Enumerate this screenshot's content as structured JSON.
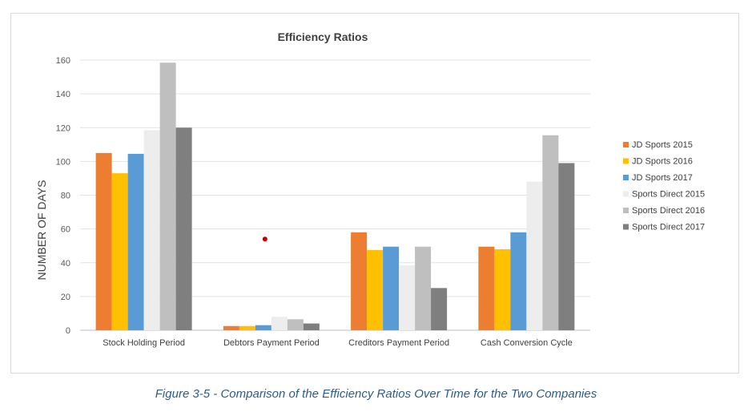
{
  "caption": "Figure 3-5 - Comparison of the Efficiency Ratios Over Time for the Two Companies",
  "chart_data": {
    "type": "bar",
    "title": "Efficiency Ratios",
    "xlabel": "",
    "ylabel": "NUMBER OF DAYS",
    "ylim": [
      0,
      160
    ],
    "yticks": [
      0,
      20,
      40,
      60,
      80,
      100,
      120,
      140,
      160
    ],
    "grid": true,
    "legend_position": "right",
    "categories": [
      "Stock Holding Period",
      "Debtors Payment Period",
      "Creditors Payment Period",
      "Cash Conversion Cycle"
    ],
    "series": [
      {
        "name": "JD Sports 2015",
        "color": "#ed7d31",
        "values": [
          105,
          2.5,
          58,
          49.5
        ]
      },
      {
        "name": "JD Sports 2016",
        "color": "#ffc000",
        "values": [
          93,
          2.5,
          47.5,
          48
        ]
      },
      {
        "name": "JD Sports 2017",
        "color": "#5b9bd5",
        "values": [
          104.5,
          3,
          49.5,
          58
        ]
      },
      {
        "name": "Sports Direct 2015",
        "color": "#ededed",
        "values": [
          118.5,
          8,
          38.5,
          88
        ]
      },
      {
        "name": "Sports Direct 2016",
        "color": "#bfbfbf",
        "values": [
          158.5,
          6.5,
          49.5,
          115.5
        ]
      },
      {
        "name": "Sports Direct 2017",
        "color": "#7f7f7f",
        "values": [
          120,
          4,
          25,
          99
        ]
      }
    ],
    "annotation_marker": {
      "category": "Debtors Payment Period",
      "y": 54,
      "color": "#c00000"
    }
  }
}
